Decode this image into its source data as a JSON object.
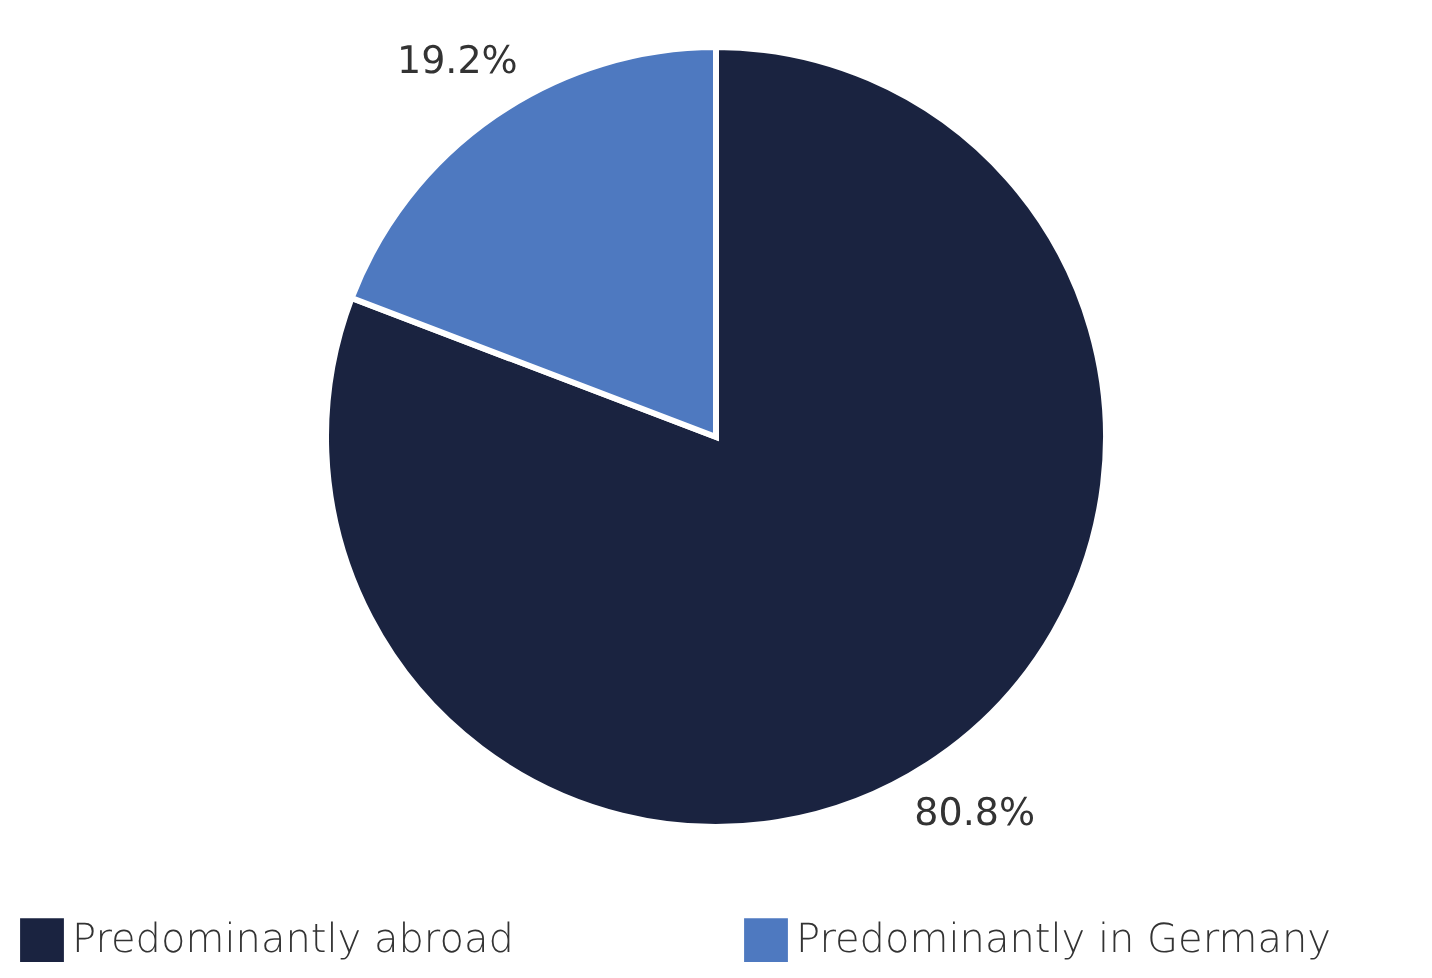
{
  "chart_data": {
    "type": "pie",
    "categories": [
      "Predominantly abroad",
      "Predominantly in Germany"
    ],
    "values": [
      80.8,
      19.2
    ],
    "colors": [
      "#1a2340",
      "#4e79c0"
    ],
    "value_labels": [
      "80.8%",
      "19.2%"
    ],
    "legend": "bottom"
  }
}
